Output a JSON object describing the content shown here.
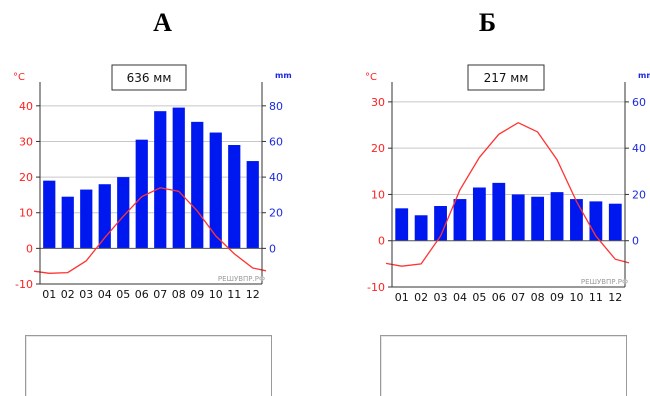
{
  "charts_meta": {
    "temp_unit": "°C",
    "precip_unit": "mm",
    "watermark": "РЕШУВПР.РФ"
  },
  "chart_data": [
    {
      "type": "bar",
      "label": "А",
      "annual_precip": "636 мм",
      "categories": [
        "01",
        "02",
        "03",
        "04",
        "05",
        "06",
        "07",
        "08",
        "09",
        "10",
        "11",
        "12"
      ],
      "series": [
        {
          "name": "",
          "kind": "bar",
          "axis": "right",
          "color": "#0018f0",
          "values": [
            38,
            29,
            33,
            36,
            40,
            61,
            77,
            79,
            71,
            65,
            58,
            49
          ]
        },
        {
          "name": "",
          "kind": "line",
          "axis": "left",
          "color": "#ff3333",
          "values": [
            -7,
            -6.8,
            -3.5,
            3,
            9,
            14.5,
            17,
            16,
            10.5,
            3.5,
            -1.5,
            -5.5
          ]
        }
      ],
      "y_left": {
        "label": "°C",
        "ylim": [
          -10,
          45
        ],
        "ticks": [
          -10,
          0,
          10,
          20,
          30,
          40
        ]
      },
      "y_right": {
        "label": "mm",
        "ylim": [
          -20,
          90
        ],
        "ticks": [
          0,
          20,
          40,
          60,
          80
        ]
      },
      "grid": true
    },
    {
      "type": "bar",
      "label": "Б",
      "annual_precip": "217 мм",
      "categories": [
        "01",
        "02",
        "03",
        "04",
        "05",
        "06",
        "07",
        "08",
        "09",
        "10",
        "11",
        "12"
      ],
      "series": [
        {
          "name": "",
          "kind": "bar",
          "axis": "right",
          "color": "#0018f0",
          "values": [
            14,
            11,
            15,
            18,
            23,
            25,
            20,
            19,
            21,
            18,
            17,
            16
          ]
        },
        {
          "name": "",
          "kind": "line",
          "axis": "left",
          "color": "#ff3333",
          "values": [
            -5.5,
            -5,
            1,
            11,
            18,
            23,
            25.5,
            23.5,
            17.5,
            8.5,
            1,
            -4
          ]
        }
      ],
      "y_left": {
        "label": "°C",
        "ylim": [
          -10,
          33
        ],
        "ticks": [
          -10,
          0,
          10,
          20,
          30
        ]
      },
      "y_right": {
        "label": "mm",
        "ylim": [
          -20,
          66
        ],
        "ticks": [
          0,
          20,
          40,
          60
        ]
      },
      "grid": true
    }
  ]
}
